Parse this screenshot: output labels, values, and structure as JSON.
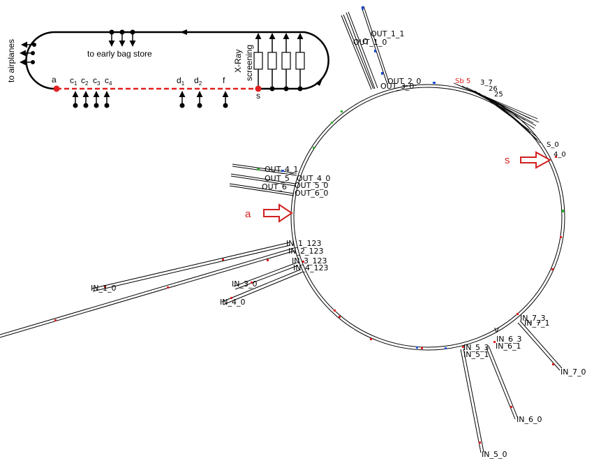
{
  "schematic": {
    "airplanes_label": "to airplanes",
    "early_store_label": "to early bag store",
    "xray_label_1": "X-Ray",
    "xray_label_2": "screening",
    "point_a": "a",
    "point_c1": "c",
    "point_c1_sub": "1",
    "point_c2": "c",
    "point_c2_sub": "2",
    "point_c3": "c",
    "point_c3_sub": "3",
    "point_c4": "c",
    "point_c4_sub": "4",
    "point_d1": "d",
    "point_d1_sub": "1",
    "point_d2": "d",
    "point_d2_sub": "2",
    "point_f": "f",
    "point_s": "s",
    "colors": {
      "line": "#000000",
      "highlight": "#e02020"
    }
  },
  "loop_map": {
    "marker_a": "a",
    "marker_s": "s",
    "outputs": {
      "out_1_1": "OUT_1_1",
      "out_1_0": "OUT_1_0",
      "out_1_short": "O",
      "out_2_0": "OUT_2_0",
      "out_3_0": "OUT_3_0",
      "out_4_1": "OUT_4_1",
      "out_4_0": "OUT_4_0",
      "out_5": "OUT_5",
      "out_5_0": "OUT_5_0",
      "out_6": "OUT_6",
      "out_6_0": "OUT_6_0"
    },
    "inputs": {
      "in_1_0": "IN_1_0",
      "in_3_0": "IN_3_0",
      "in_4_0": "IN_4_0",
      "in_1_123": "IN_1_123",
      "in_2_123": "IN_2_123",
      "in_3_123": "IN_3_123",
      "in_4_123": "IN_4_123",
      "in_5_0": "IN_5_0",
      "in_6_0": "IN_6_0",
      "in_6_3": "IN_6_3",
      "in_6_1": "IN_6_1",
      "in_5_3": "IN_5_3",
      "in_5_1": "IN_5_1",
      "in_7_0": "IN_7_0",
      "in_7_3": "IN_7_3",
      "in_7_1": "IN_7_1",
      "v_mark": "V"
    },
    "right_cluster": {
      "s_0": "S_0",
      "t_0": "4_0",
      "red_fragment": "Sb 5",
      "fragment_1": "3_7",
      "fragment_2": "26",
      "fragment_3": "25"
    },
    "colors": {
      "track": "#000000",
      "red_arrow": "#d21f1f",
      "sensor_red": "#e02020",
      "sensor_blue": "#2050d0",
      "sensor_green": "#30b030"
    }
  }
}
